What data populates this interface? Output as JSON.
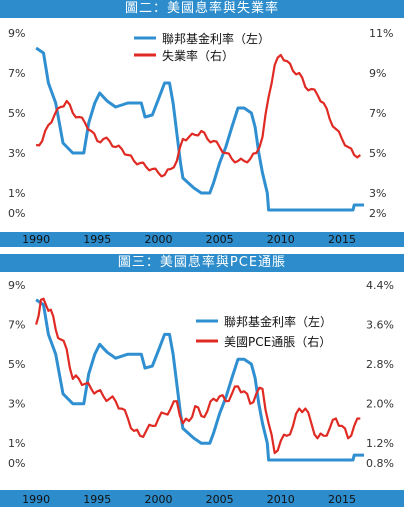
{
  "chart_data": [
    {
      "type": "line",
      "title": "圖二：美國息率與失業率",
      "x_ticks": [
        "1990",
        "1995",
        "2000",
        "2005",
        "2010",
        "2015"
      ],
      "x_range": [
        1989.5,
        2016.8
      ],
      "y_left": {
        "range": [
          0,
          9
        ],
        "ticks": [
          "9%",
          "7%",
          "5%",
          "3%",
          "1%",
          "0%"
        ],
        "tick_values": [
          9,
          7,
          5,
          3,
          1,
          0
        ]
      },
      "y_right": {
        "range": [
          2,
          11
        ],
        "ticks": [
          "11%",
          "9%",
          "7%",
          "5%",
          "3%",
          "2%"
        ],
        "tick_values": [
          11,
          9,
          7,
          5,
          3,
          2
        ]
      },
      "legend_position": "top-right",
      "series": [
        {
          "name": "聯邦基金利率（左）",
          "axis": "left",
          "color": "#2f8fd0",
          "x": [
            1990.0,
            1990.6,
            1991.0,
            1991.6,
            1992.2,
            1993.0,
            1993.9,
            1994.3,
            1994.8,
            1995.2,
            1995.8,
            1996.5,
            1997.5,
            1998.6,
            1998.9,
            1999.5,
            2000.0,
            2000.5,
            2000.9,
            2001.2,
            2001.5,
            2001.8,
            2002.0,
            2002.9,
            2003.5,
            2004.2,
            2004.5,
            2005.0,
            2005.5,
            2006.0,
            2006.5,
            2007.0,
            2007.6,
            2007.9,
            2008.2,
            2008.5,
            2008.9,
            2009.0,
            2015.9,
            2016.0,
            2016.8
          ],
          "y": [
            8.25,
            8.0,
            6.5,
            5.5,
            3.5,
            3.0,
            3.0,
            4.5,
            5.5,
            6.0,
            5.6,
            5.3,
            5.5,
            5.5,
            4.8,
            4.9,
            5.7,
            6.5,
            6.5,
            5.5,
            4.0,
            2.5,
            1.75,
            1.25,
            1.0,
            1.0,
            1.5,
            2.5,
            3.3,
            4.3,
            5.25,
            5.25,
            5.0,
            4.3,
            3.0,
            2.0,
            1.0,
            0.15,
            0.15,
            0.4,
            0.4
          ]
        },
        {
          "name": "失業率（右）",
          "axis": "right",
          "color": "#e02a24",
          "x": [
            1990.0,
            1990.5,
            1991.0,
            1991.5,
            1992.0,
            1992.5,
            1993.0,
            1993.5,
            1994.0,
            1994.5,
            1995.0,
            1995.5,
            1996.0,
            1996.5,
            1997.0,
            1997.5,
            1998.0,
            1998.5,
            1999.0,
            1999.5,
            2000.0,
            2000.5,
            2001.0,
            2001.5,
            2002.0,
            2002.5,
            2003.0,
            2003.5,
            2004.0,
            2004.5,
            2005.0,
            2005.5,
            2006.0,
            2006.5,
            2007.0,
            2007.5,
            2008.0,
            2008.5,
            2009.0,
            2009.5,
            2010.0,
            2010.5,
            2011.0,
            2011.5,
            2012.0,
            2012.5,
            2013.0,
            2013.5,
            2014.0,
            2014.5,
            2015.0,
            2015.5,
            2016.0,
            2016.5
          ],
          "y": [
            5.4,
            5.6,
            6.4,
            6.9,
            7.3,
            7.6,
            7.0,
            6.8,
            6.5,
            6.1,
            5.6,
            5.7,
            5.6,
            5.3,
            5.2,
            4.9,
            4.6,
            4.5,
            4.3,
            4.2,
            4.0,
            3.9,
            4.2,
            4.6,
            5.7,
            5.8,
            5.9,
            6.1,
            5.7,
            5.6,
            5.3,
            5.0,
            4.7,
            4.6,
            4.6,
            4.7,
            5.0,
            5.8,
            7.8,
            9.4,
            9.9,
            9.6,
            9.1,
            9.0,
            8.3,
            8.2,
            7.9,
            7.5,
            6.7,
            6.2,
            5.7,
            5.3,
            4.9,
            4.9
          ]
        }
      ]
    },
    {
      "type": "line",
      "title": "圖三：美國息率與PCE通脹",
      "x_ticks": [
        "1990",
        "1995",
        "2000",
        "2005",
        "2010",
        "2015"
      ],
      "x_range": [
        1989.5,
        2016.8
      ],
      "y_left": {
        "range": [
          0,
          9
        ],
        "ticks": [
          "9%",
          "7%",
          "5%",
          "3%",
          "1%",
          "0%"
        ],
        "tick_values": [
          9,
          7,
          5,
          3,
          1,
          0
        ]
      },
      "y_right": {
        "range": [
          0.8,
          4.4
        ],
        "ticks": [
          "4.4%",
          "3.6%",
          "2.8%",
          "2.0%",
          "1.2%",
          "0.8%"
        ],
        "tick_values": [
          4.4,
          3.6,
          2.8,
          2.0,
          1.2,
          0.8
        ]
      },
      "legend_position": "top-right",
      "series": [
        {
          "name": "聯邦基金利率（左）",
          "axis": "left",
          "color": "#2f8fd0",
          "x": [
            1990.0,
            1990.6,
            1991.0,
            1991.6,
            1992.2,
            1993.0,
            1993.9,
            1994.3,
            1994.8,
            1995.2,
            1995.8,
            1996.5,
            1997.5,
            1998.6,
            1998.9,
            1999.5,
            2000.0,
            2000.5,
            2000.9,
            2001.2,
            2001.5,
            2001.8,
            2002.0,
            2002.9,
            2003.5,
            2004.2,
            2004.5,
            2005.0,
            2005.5,
            2006.0,
            2006.5,
            2007.0,
            2007.6,
            2007.9,
            2008.2,
            2008.5,
            2008.9,
            2009.0,
            2015.9,
            2016.0,
            2016.8
          ],
          "y": [
            8.25,
            8.0,
            6.5,
            5.5,
            3.5,
            3.0,
            3.0,
            4.5,
            5.5,
            6.0,
            5.6,
            5.3,
            5.5,
            5.5,
            4.8,
            4.9,
            5.7,
            6.5,
            6.5,
            5.5,
            4.0,
            2.5,
            1.75,
            1.25,
            1.0,
            1.0,
            1.5,
            2.5,
            3.3,
            4.3,
            5.25,
            5.25,
            5.0,
            4.3,
            3.0,
            2.0,
            1.0,
            0.15,
            0.15,
            0.4,
            0.4
          ]
        },
        {
          "name": "美國PCE通脹（右）",
          "axis": "right",
          "color": "#e02a24",
          "x": [
            1990.0,
            1990.4,
            1990.8,
            1991.2,
            1991.6,
            1992.0,
            1992.5,
            1993.0,
            1993.5,
            1994.0,
            1994.5,
            1995.0,
            1995.5,
            1996.0,
            1996.5,
            1997.0,
            1997.5,
            1998.0,
            1998.5,
            1999.0,
            1999.5,
            2000.0,
            2000.5,
            2001.0,
            2001.5,
            2002.0,
            2002.5,
            2003.0,
            2003.5,
            2004.0,
            2004.5,
            2005.0,
            2005.5,
            2006.0,
            2006.5,
            2007.0,
            2007.5,
            2008.0,
            2008.5,
            2009.0,
            2009.5,
            2010.0,
            2010.5,
            2011.0,
            2011.5,
            2012.0,
            2012.5,
            2013.0,
            2013.5,
            2014.0,
            2014.5,
            2015.0,
            2015.5,
            2016.0,
            2016.5
          ],
          "y": [
            3.6,
            4.1,
            4.0,
            3.9,
            3.5,
            3.3,
            3.1,
            2.5,
            2.5,
            2.4,
            2.3,
            2.25,
            2.15,
            2.1,
            2.05,
            1.9,
            1.7,
            1.45,
            1.35,
            1.45,
            1.55,
            1.7,
            1.8,
            1.9,
            2.05,
            1.6,
            1.65,
            1.95,
            1.75,
            1.85,
            2.1,
            2.15,
            2.05,
            2.2,
            2.35,
            2.25,
            2.0,
            2.2,
            2.3,
            1.6,
            1.0,
            1.25,
            1.35,
            1.55,
            1.9,
            1.9,
            1.6,
            1.3,
            1.35,
            1.5,
            1.7,
            1.55,
            1.3,
            1.55,
            1.7
          ]
        }
      ]
    }
  ]
}
